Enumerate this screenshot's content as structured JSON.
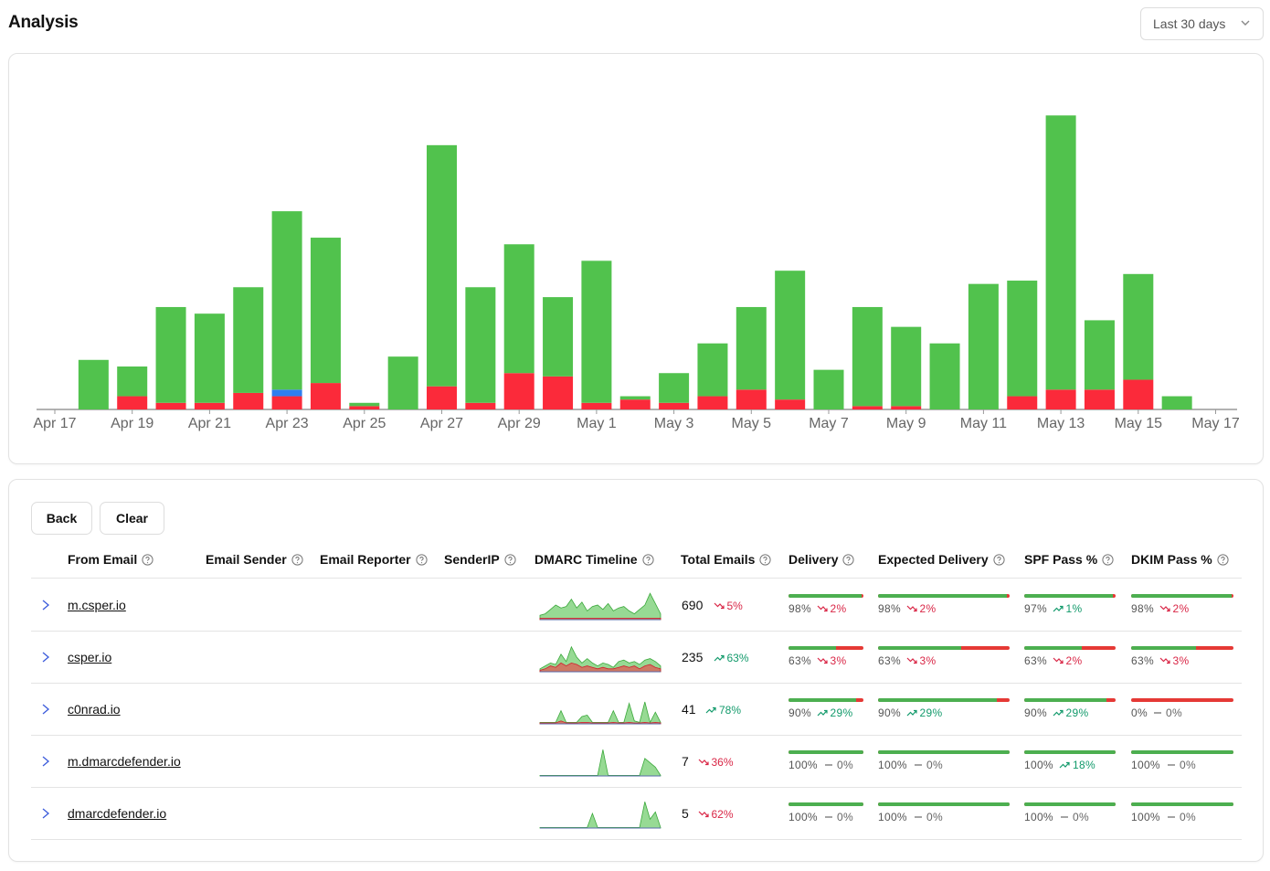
{
  "header": {
    "title": "Analysis",
    "range_label": "Last 30 days"
  },
  "colors": {
    "pass": "#51c24d",
    "fail": "#fb2a3a",
    "forward": "#2f7ff0",
    "axis": "#999999"
  },
  "chart_data": {
    "type": "bar",
    "stacked": true,
    "x_ticks": [
      "Apr 17",
      "Apr 19",
      "Apr 21",
      "Apr 23",
      "Apr 25",
      "Apr 27",
      "Apr 29",
      "May 1",
      "May 3",
      "May 5",
      "May 7",
      "May 9",
      "May 11",
      "May 13",
      "May 15",
      "May 17"
    ],
    "dates": [
      "Apr 17",
      "Apr 18",
      "Apr 19",
      "Apr 20",
      "Apr 21",
      "Apr 22",
      "Apr 23",
      "Apr 24",
      "Apr 25",
      "Apr 26",
      "Apr 27",
      "Apr 28",
      "Apr 29",
      "Apr 30",
      "May 1",
      "May 2",
      "May 3",
      "May 4",
      "May 5",
      "May 6",
      "May 7",
      "May 8",
      "May 9",
      "May 10",
      "May 11",
      "May 12",
      "May 13",
      "May 14",
      "May 15",
      "May 16",
      "May 17"
    ],
    "series": [
      {
        "name": "fail",
        "color": "#fb2a3a",
        "values": [
          0,
          0,
          4,
          2,
          2,
          5,
          4,
          8,
          1,
          0,
          7,
          2,
          11,
          10,
          2,
          3,
          2,
          4,
          6,
          3,
          0,
          1,
          1,
          0,
          0,
          4,
          6,
          6,
          9,
          0,
          0
        ]
      },
      {
        "name": "forward",
        "color": "#2f7ff0",
        "values": [
          0,
          0,
          0,
          0,
          0,
          0,
          2,
          0,
          0,
          0,
          0,
          0,
          0,
          0,
          0,
          0,
          0,
          0,
          0,
          0,
          0,
          0,
          0,
          0,
          0,
          0,
          0,
          0,
          0,
          0,
          0
        ]
      },
      {
        "name": "pass",
        "color": "#51c24d",
        "values": [
          0,
          15,
          9,
          29,
          27,
          32,
          54,
          44,
          1,
          16,
          73,
          35,
          39,
          24,
          43,
          1,
          9,
          16,
          25,
          39,
          12,
          30,
          24,
          20,
          38,
          35,
          83,
          21,
          32,
          4,
          0
        ]
      }
    ],
    "ylim": [
      0,
      96
    ],
    "grid": false
  },
  "table": {
    "back_label": "Back",
    "clear_label": "Clear",
    "columns": [
      "From Email",
      "Email Sender",
      "Email Reporter",
      "SenderIP",
      "DMARC Timeline",
      "Total Emails",
      "Delivery",
      "Expected Delivery",
      "SPF Pass %",
      "DKIM Pass %"
    ],
    "rows": [
      {
        "domain": "m.csper.io",
        "total": "690",
        "trend": {
          "dir": "down",
          "text": "5%"
        },
        "metrics": [
          {
            "fill": 0.98,
            "value": "98%",
            "dir": "down",
            "delta": "2%"
          },
          {
            "fill": 0.98,
            "value": "98%",
            "dir": "down",
            "delta": "2%"
          },
          {
            "fill": 0.97,
            "value": "97%",
            "dir": "up",
            "delta": "1%"
          },
          {
            "fill": 0.98,
            "value": "98%",
            "dir": "down",
            "delta": "2%"
          }
        ],
        "spark": {
          "pass": [
            0.15,
            0.2,
            0.35,
            0.5,
            0.4,
            0.45,
            0.7,
            0.4,
            0.6,
            0.3,
            0.45,
            0.5,
            0.35,
            0.55,
            0.3,
            0.4,
            0.45,
            0.3,
            0.2,
            0.35,
            0.5,
            0.9,
            0.55,
            0.2
          ],
          "fail": [
            0.05,
            0.05,
            0.05,
            0.05,
            0.05,
            0.05,
            0.05,
            0.05,
            0.05,
            0.05,
            0.05,
            0.05,
            0.05,
            0.05,
            0.05,
            0.05,
            0.05,
            0.05,
            0.05,
            0.05,
            0.05,
            0.05,
            0.05,
            0.05
          ]
        }
      },
      {
        "domain": "csper.io",
        "total": "235",
        "trend": {
          "dir": "up",
          "text": "63%"
        },
        "metrics": [
          {
            "fill": 0.63,
            "value": "63%",
            "dir": "down",
            "delta": "3%"
          },
          {
            "fill": 0.63,
            "value": "63%",
            "dir": "down",
            "delta": "3%"
          },
          {
            "fill": 0.63,
            "value": "63%",
            "dir": "down",
            "delta": "2%"
          },
          {
            "fill": 0.63,
            "value": "63%",
            "dir": "down",
            "delta": "3%"
          }
        ],
        "spark": {
          "pass": [
            0.1,
            0.2,
            0.3,
            0.25,
            0.6,
            0.35,
            0.85,
            0.5,
            0.3,
            0.45,
            0.3,
            0.2,
            0.3,
            0.25,
            0.15,
            0.35,
            0.4,
            0.3,
            0.35,
            0.25,
            0.4,
            0.45,
            0.35,
            0.2
          ],
          "fail": [
            0.05,
            0.1,
            0.2,
            0.15,
            0.3,
            0.2,
            0.3,
            0.25,
            0.15,
            0.2,
            0.15,
            0.1,
            0.15,
            0.1,
            0.1,
            0.15,
            0.2,
            0.15,
            0.2,
            0.1,
            0.2,
            0.25,
            0.15,
            0.1
          ]
        }
      },
      {
        "domain": "c0nrad.io",
        "total": "41",
        "trend": {
          "dir": "up",
          "text": "78%"
        },
        "metrics": [
          {
            "fill": 0.9,
            "value": "90%",
            "dir": "up",
            "delta": "29%"
          },
          {
            "fill": 0.9,
            "value": "90%",
            "dir": "up",
            "delta": "29%"
          },
          {
            "fill": 0.9,
            "value": "90%",
            "dir": "up",
            "delta": "29%"
          },
          {
            "fill": 0.0,
            "value": "0%",
            "dir": "flat",
            "delta": "0%"
          }
        ],
        "spark": {
          "pass": [
            0.05,
            0.05,
            0.05,
            0.05,
            0.45,
            0.05,
            0.05,
            0.05,
            0.25,
            0.3,
            0.05,
            0.05,
            0.05,
            0.05,
            0.45,
            0.05,
            0.05,
            0.7,
            0.1,
            0.05,
            0.75,
            0.05,
            0.4,
            0.05
          ],
          "fail": [
            0.03,
            0.03,
            0.03,
            0.03,
            0.1,
            0.03,
            0.03,
            0.03,
            0.05,
            0.05,
            0.03,
            0.03,
            0.03,
            0.03,
            0.05,
            0.03,
            0.03,
            0.05,
            0.03,
            0.03,
            0.05,
            0.03,
            0.05,
            0.03
          ]
        }
      },
      {
        "domain": "m.dmarcdefender.io",
        "total": "7",
        "trend": {
          "dir": "down",
          "text": "36%"
        },
        "metrics": [
          {
            "fill": 1.0,
            "value": "100%",
            "dir": "flat",
            "delta": "0%"
          },
          {
            "fill": 1.0,
            "value": "100%",
            "dir": "flat",
            "delta": "0%"
          },
          {
            "fill": 1.0,
            "value": "100%",
            "dir": "up",
            "delta": "18%"
          },
          {
            "fill": 1.0,
            "value": "100%",
            "dir": "flat",
            "delta": "0%"
          }
        ],
        "spark": {
          "pass": [
            0.02,
            0.02,
            0.02,
            0.02,
            0.02,
            0.02,
            0.02,
            0.02,
            0.02,
            0.02,
            0.02,
            0.02,
            0.9,
            0.02,
            0.02,
            0.02,
            0.02,
            0.02,
            0.02,
            0.02,
            0.6,
            0.45,
            0.3,
            0.02
          ],
          "fail": [
            0,
            0,
            0,
            0,
            0,
            0,
            0,
            0,
            0,
            0,
            0,
            0,
            0,
            0,
            0,
            0,
            0,
            0,
            0,
            0,
            0,
            0,
            0,
            0
          ]
        }
      },
      {
        "domain": "dmarcdefender.io",
        "total": "5",
        "trend": {
          "dir": "down",
          "text": "62%"
        },
        "metrics": [
          {
            "fill": 1.0,
            "value": "100%",
            "dir": "flat",
            "delta": "0%"
          },
          {
            "fill": 1.0,
            "value": "100%",
            "dir": "flat",
            "delta": "0%"
          },
          {
            "fill": 1.0,
            "value": "100%",
            "dir": "flat",
            "delta": "0%"
          },
          {
            "fill": 1.0,
            "value": "100%",
            "dir": "flat",
            "delta": "0%"
          }
        ],
        "spark": {
          "pass": [
            0.02,
            0.02,
            0.02,
            0.02,
            0.02,
            0.02,
            0.02,
            0.02,
            0.02,
            0.02,
            0.5,
            0.02,
            0.02,
            0.02,
            0.02,
            0.02,
            0.02,
            0.02,
            0.02,
            0.02,
            0.9,
            0.3,
            0.55,
            0.02
          ],
          "fail": [
            0,
            0,
            0,
            0,
            0,
            0,
            0,
            0,
            0,
            0,
            0,
            0,
            0,
            0,
            0,
            0,
            0,
            0,
            0,
            0,
            0,
            0,
            0,
            0
          ]
        }
      }
    ]
  }
}
